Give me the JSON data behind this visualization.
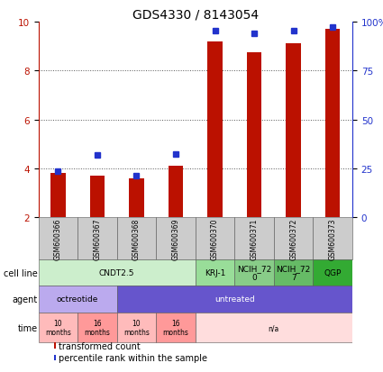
{
  "title": "GDS4330 / 8143054",
  "samples": [
    "GSM600366",
    "GSM600367",
    "GSM600368",
    "GSM600369",
    "GSM600370",
    "GSM600371",
    "GSM600372",
    "GSM600373"
  ],
  "bar_values": [
    3.8,
    3.7,
    3.6,
    4.1,
    9.2,
    8.75,
    9.1,
    9.7
  ],
  "percentile_values": [
    3.9,
    4.55,
    3.72,
    4.6,
    9.62,
    9.5,
    9.62,
    9.78
  ],
  "ylim": [
    2,
    10
  ],
  "yticks_left": [
    2,
    4,
    6,
    8,
    10
  ],
  "yticks_right": [
    0,
    25,
    50,
    75,
    100
  ],
  "bar_color": "#bb1100",
  "dot_color": "#2233cc",
  "bar_width": 0.38,
  "cell_line_groups": [
    {
      "label": "CNDT2.5",
      "start": 0,
      "end": 4,
      "color": "#cceecc"
    },
    {
      "label": "KRJ-1",
      "start": 4,
      "end": 5,
      "color": "#99dd99"
    },
    {
      "label": "NCIH_72\n0",
      "start": 5,
      "end": 6,
      "color": "#88cc88"
    },
    {
      "label": "NCIH_72\n7",
      "start": 6,
      "end": 7,
      "color": "#66bb66"
    },
    {
      "label": "QGP",
      "start": 7,
      "end": 8,
      "color": "#33aa33"
    }
  ],
  "agent_groups": [
    {
      "label": "octreotide",
      "start": 0,
      "end": 2,
      "color": "#bbaaee"
    },
    {
      "label": "untreated",
      "start": 2,
      "end": 8,
      "color": "#6655cc"
    }
  ],
  "time_groups": [
    {
      "label": "10\nmonths",
      "start": 0,
      "end": 1,
      "color": "#ffbbbb"
    },
    {
      "label": "16\nmonths",
      "start": 1,
      "end": 2,
      "color": "#ff9999"
    },
    {
      "label": "10\nmonths",
      "start": 2,
      "end": 3,
      "color": "#ffbbbb"
    },
    {
      "label": "16\nmonths",
      "start": 3,
      "end": 4,
      "color": "#ff9999"
    },
    {
      "label": "n/a",
      "start": 4,
      "end": 8,
      "color": "#ffdddd"
    }
  ],
  "legend_items": [
    {
      "label": "transformed count",
      "color": "#bb1100"
    },
    {
      "label": "percentile rank within the sample",
      "color": "#2233cc"
    }
  ],
  "grid_color": "#555555",
  "grid_ticks": [
    4,
    6,
    8
  ],
  "bg_color": "#ffffff",
  "title_fontsize": 10,
  "tick_fontsize": 7.5,
  "table_label_fontsize": 7,
  "sample_fontsize": 5.5,
  "cell_fontsize": 6.5,
  "legend_fontsize": 7
}
